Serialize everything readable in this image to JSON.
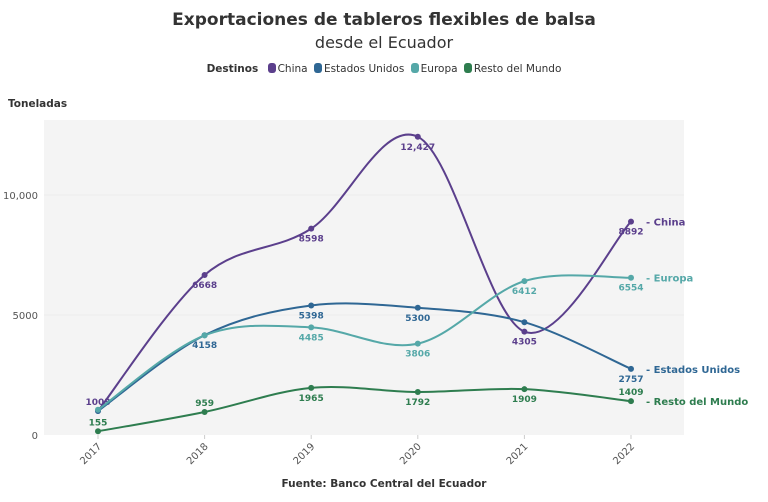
{
  "chart_data": {
    "type": "line",
    "title": "Exportaciones de tableros flexibles de balsa",
    "subtitle": "desde el Ecuador",
    "legend_title": "Destinos",
    "legend_placement": "top",
    "ylabel": "Toneladas",
    "source": "Fuente: Banco Central del Ecuador",
    "x": [
      "2017",
      "2018",
      "2019",
      "2020",
      "2021",
      "2022"
    ],
    "ylim": [
      0,
      13125
    ],
    "yticks": [
      0,
      5000,
      10000
    ],
    "ytick_labels": [
      "0",
      "5000",
      "10,000"
    ],
    "grid": true,
    "series": [
      {
        "name": "China",
        "color": "#5b3f8c",
        "values": [
          1003,
          6668,
          8598,
          12427,
          4305,
          8892
        ],
        "labels": [
          "1003",
          "6668",
          "8598",
          "12,427",
          "4305",
          "8892"
        ]
      },
      {
        "name": "Estados Unidos",
        "color": "#2f6794",
        "values": [
          1000,
          4158,
          5398,
          5300,
          4700,
          2757
        ],
        "labels": [
          "",
          "4158",
          "5398",
          "5300",
          "",
          "2757"
        ]
      },
      {
        "name": "Europa",
        "color": "#55a8a8",
        "values": [
          1050,
          4150,
          4485,
          3806,
          6412,
          6554
        ],
        "labels": [
          "",
          "",
          "4485",
          "3806",
          "6412",
          "6554"
        ]
      },
      {
        "name": "Resto del Mundo",
        "color": "#2e7d4f",
        "values": [
          155,
          959,
          1965,
          1792,
          1909,
          1409
        ],
        "labels": [
          "155",
          "959",
          "1965",
          "1792",
          "1909",
          "1409"
        ]
      }
    ]
  }
}
